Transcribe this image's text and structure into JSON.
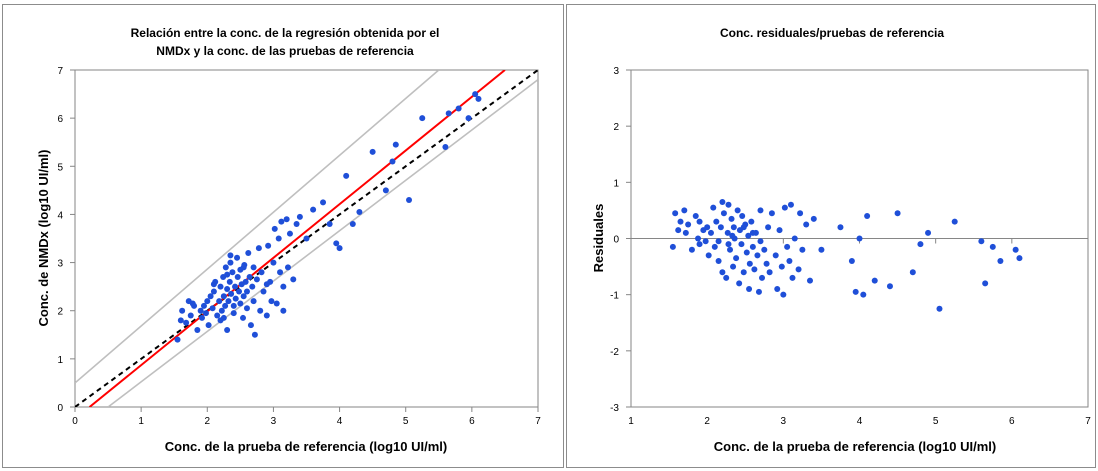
{
  "chart_data": [
    {
      "type": "scatter",
      "title": "Relación entre la conc. de la regresión obtenida por el NMDx y la conc. de las pruebas de referencia",
      "title_lines": [
        "Relación entre la conc. de la regresión obtenida por el",
        "NMDx y la conc. de las pruebas de referencia"
      ],
      "xlabel": "Conc. de la prueba de referencia (log10 UI/ml)",
      "ylabel": "Conc. de NMDx (log10 UI/ml)",
      "xlim": [
        0,
        7
      ],
      "ylim": [
        0,
        7
      ],
      "xticks": [
        0,
        1,
        2,
        3,
        4,
        5,
        6,
        7
      ],
      "yticks": [
        0,
        1,
        2,
        3,
        4,
        5,
        6,
        7
      ],
      "grid": false,
      "point_color": "#1f4fd8",
      "lines": [
        {
          "style": "dashed",
          "color": "#000000",
          "points": [
            [
              0,
              0
            ],
            [
              7,
              7
            ]
          ]
        },
        {
          "style": "solid",
          "color": "#ff0000",
          "points": [
            [
              0.22,
              0
            ],
            [
              6.5,
              7
            ]
          ]
        },
        {
          "style": "solid",
          "color": "#bfbfbf",
          "points": [
            [
              0,
              0.5
            ],
            [
              5.5,
              7
            ]
          ]
        },
        {
          "style": "solid",
          "color": "#bfbfbf",
          "points": [
            [
              0.5,
              0
            ],
            [
              7,
              6.8
            ]
          ]
        }
      ],
      "points": [
        [
          1.55,
          1.4
        ],
        [
          1.6,
          1.8
        ],
        [
          1.62,
          2.0
        ],
        [
          1.68,
          1.75
        ],
        [
          1.72,
          2.2
        ],
        [
          1.75,
          1.9
        ],
        [
          1.8,
          2.1
        ],
        [
          1.85,
          1.6
        ],
        [
          1.9,
          2.0
        ],
        [
          1.92,
          1.85
        ],
        [
          1.95,
          2.1
        ],
        [
          1.98,
          1.95
        ],
        [
          2.0,
          2.2
        ],
        [
          2.02,
          1.7
        ],
        [
          2.05,
          2.3
        ],
        [
          2.08,
          2.05
        ],
        [
          2.1,
          2.4
        ],
        [
          2.12,
          2.6
        ],
        [
          2.15,
          1.9
        ],
        [
          2.18,
          2.2
        ],
        [
          2.2,
          2.5
        ],
        [
          2.2,
          1.8
        ],
        [
          2.22,
          2.0
        ],
        [
          2.24,
          2.7
        ],
        [
          2.25,
          2.3
        ],
        [
          2.27,
          2.1
        ],
        [
          2.28,
          2.9
        ],
        [
          2.3,
          2.45
        ],
        [
          2.3,
          1.6
        ],
        [
          2.32,
          2.2
        ],
        [
          2.34,
          2.6
        ],
        [
          2.35,
          3.0
        ],
        [
          2.36,
          2.35
        ],
        [
          2.38,
          2.8
        ],
        [
          2.4,
          2.1
        ],
        [
          2.4,
          1.95
        ],
        [
          2.42,
          2.5
        ],
        [
          2.43,
          2.25
        ],
        [
          2.45,
          3.1
        ],
        [
          2.46,
          2.7
        ],
        [
          2.48,
          2.4
        ],
        [
          2.5,
          2.15
        ],
        [
          2.5,
          2.85
        ],
        [
          2.52,
          2.55
        ],
        [
          2.54,
          1.85
        ],
        [
          2.55,
          2.3
        ],
        [
          2.56,
          2.95
        ],
        [
          2.58,
          2.6
        ],
        [
          2.6,
          2.05
        ],
        [
          2.6,
          2.4
        ],
        [
          2.62,
          3.2
        ],
        [
          2.64,
          2.7
        ],
        [
          2.66,
          1.7
        ],
        [
          2.68,
          2.5
        ],
        [
          2.7,
          2.2
        ],
        [
          2.7,
          2.9
        ],
        [
          2.72,
          1.5
        ],
        [
          2.75,
          2.65
        ],
        [
          2.78,
          3.3
        ],
        [
          2.8,
          2.0
        ],
        [
          2.82,
          2.8
        ],
        [
          2.85,
          2.4
        ],
        [
          2.9,
          1.9
        ],
        [
          2.92,
          3.35
        ],
        [
          2.95,
          2.6
        ],
        [
          2.97,
          2.2
        ],
        [
          3.0,
          3.0
        ],
        [
          3.02,
          3.7
        ],
        [
          3.05,
          2.15
        ],
        [
          3.08,
          3.5
        ],
        [
          3.1,
          2.8
        ],
        [
          3.12,
          3.85
        ],
        [
          3.15,
          2.5
        ],
        [
          3.2,
          3.9
        ],
        [
          3.22,
          2.9
        ],
        [
          3.25,
          3.6
        ],
        [
          3.3,
          2.65
        ],
        [
          3.35,
          3.8
        ],
        [
          3.4,
          3.95
        ],
        [
          3.5,
          3.5
        ],
        [
          3.6,
          4.1
        ],
        [
          3.75,
          4.25
        ],
        [
          3.85,
          3.8
        ],
        [
          3.95,
          3.4
        ],
        [
          4.0,
          3.3
        ],
        [
          4.1,
          4.8
        ],
        [
          4.2,
          3.8
        ],
        [
          4.3,
          4.05
        ],
        [
          4.5,
          5.3
        ],
        [
          4.7,
          4.5
        ],
        [
          4.8,
          5.1
        ],
        [
          4.85,
          5.45
        ],
        [
          5.05,
          4.3
        ],
        [
          5.25,
          6.0
        ],
        [
          5.6,
          5.4
        ],
        [
          5.65,
          6.1
        ],
        [
          5.8,
          6.2
        ],
        [
          5.95,
          6.0
        ],
        [
          6.05,
          6.5
        ],
        [
          6.1,
          6.4
        ],
        [
          2.1,
          2.55
        ],
        [
          2.3,
          2.75
        ],
        [
          2.55,
          2.9
        ],
        [
          2.25,
          1.85
        ],
        [
          1.78,
          2.15
        ],
        [
          2.9,
          2.55
        ],
        [
          3.15,
          2.0
        ],
        [
          2.35,
          3.15
        ]
      ]
    },
    {
      "type": "scatter",
      "title": "Conc. residuales/pruebas de referencia",
      "title_lines": [
        "Conc. residuales/pruebas de referencia"
      ],
      "xlabel": "Conc. de la prueba de referencia (log10 UI/ml)",
      "ylabel": "Residuales",
      "xlim": [
        1,
        7
      ],
      "ylim": [
        -3,
        3
      ],
      "xticks": [
        1,
        2,
        3,
        4,
        5,
        6,
        7
      ],
      "yticks": [
        -3,
        -2,
        -1,
        0,
        1,
        2,
        3
      ],
      "grid": false,
      "point_color": "#1f4fd8",
      "points": [
        [
          1.55,
          -0.15
        ],
        [
          1.58,
          0.45
        ],
        [
          1.62,
          0.15
        ],
        [
          1.65,
          0.3
        ],
        [
          1.7,
          0.5
        ],
        [
          1.72,
          0.1
        ],
        [
          1.75,
          0.25
        ],
        [
          1.8,
          -0.2
        ],
        [
          1.85,
          0.4
        ],
        [
          1.88,
          0.0
        ],
        [
          1.9,
          -0.1
        ],
        [
          1.95,
          0.15
        ],
        [
          1.98,
          -0.05
        ],
        [
          2.0,
          0.2
        ],
        [
          2.02,
          -0.3
        ],
        [
          2.05,
          0.1
        ],
        [
          2.08,
          0.55
        ],
        [
          2.1,
          -0.15
        ],
        [
          2.12,
          0.3
        ],
        [
          2.15,
          -0.4
        ],
        [
          2.18,
          0.2
        ],
        [
          2.2,
          -0.6
        ],
        [
          2.22,
          0.45
        ],
        [
          2.25,
          -0.7
        ],
        [
          2.27,
          0.1
        ],
        [
          2.28,
          0.6
        ],
        [
          2.3,
          -0.2
        ],
        [
          2.32,
          0.35
        ],
        [
          2.34,
          -0.5
        ],
        [
          2.35,
          0.2
        ],
        [
          2.36,
          0.0
        ],
        [
          2.38,
          -0.35
        ],
        [
          2.4,
          0.5
        ],
        [
          2.42,
          -0.8
        ],
        [
          2.43,
          0.15
        ],
        [
          2.45,
          -0.1
        ],
        [
          2.46,
          0.4
        ],
        [
          2.48,
          -0.6
        ],
        [
          2.5,
          0.25
        ],
        [
          2.52,
          -0.25
        ],
        [
          2.54,
          0.05
        ],
        [
          2.55,
          -0.9
        ],
        [
          2.56,
          -0.45
        ],
        [
          2.58,
          0.3
        ],
        [
          2.6,
          -0.15
        ],
        [
          2.62,
          -0.55
        ],
        [
          2.64,
          0.1
        ],
        [
          2.66,
          -0.3
        ],
        [
          2.68,
          -0.95
        ],
        [
          2.7,
          0.5
        ],
        [
          2.72,
          -0.7
        ],
        [
          2.75,
          -0.2
        ],
        [
          2.78,
          -0.45
        ],
        [
          2.8,
          0.2
        ],
        [
          2.82,
          -0.6
        ],
        [
          2.85,
          0.45
        ],
        [
          2.9,
          -0.3
        ],
        [
          2.92,
          -0.9
        ],
        [
          2.95,
          0.15
        ],
        [
          2.98,
          -0.5
        ],
        [
          3.0,
          -1.0
        ],
        [
          3.02,
          0.55
        ],
        [
          3.05,
          -0.15
        ],
        [
          3.08,
          -0.4
        ],
        [
          3.1,
          0.6
        ],
        [
          3.12,
          -0.7
        ],
        [
          3.15,
          0.0
        ],
        [
          3.2,
          -0.55
        ],
        [
          3.22,
          0.45
        ],
        [
          3.25,
          -0.2
        ],
        [
          3.3,
          0.25
        ],
        [
          3.35,
          -0.75
        ],
        [
          3.4,
          0.35
        ],
        [
          3.5,
          -0.2
        ],
        [
          3.75,
          0.2
        ],
        [
          3.9,
          -0.4
        ],
        [
          3.95,
          -0.95
        ],
        [
          4.0,
          0.0
        ],
        [
          4.05,
          -1.0
        ],
        [
          4.1,
          0.4
        ],
        [
          4.2,
          -0.75
        ],
        [
          4.4,
          -0.85
        ],
        [
          4.5,
          0.45
        ],
        [
          4.7,
          -0.6
        ],
        [
          4.8,
          -0.1
        ],
        [
          4.9,
          0.1
        ],
        [
          5.05,
          -1.25
        ],
        [
          5.25,
          0.3
        ],
        [
          5.6,
          -0.05
        ],
        [
          5.65,
          -0.8
        ],
        [
          5.75,
          -0.15
        ],
        [
          5.85,
          -0.4
        ],
        [
          6.05,
          -0.2
        ],
        [
          6.1,
          -0.35
        ],
        [
          2.2,
          0.65
        ],
        [
          2.33,
          0.05
        ],
        [
          2.6,
          0.1
        ],
        [
          1.9,
          0.3
        ],
        [
          2.15,
          -0.05
        ],
        [
          2.28,
          -0.1
        ],
        [
          2.48,
          0.2
        ],
        [
          2.7,
          -0.05
        ]
      ]
    }
  ]
}
